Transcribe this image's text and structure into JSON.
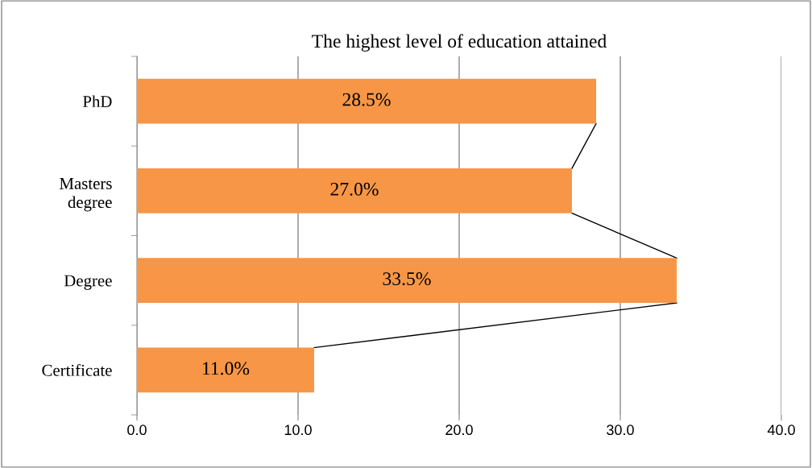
{
  "chart_data": {
    "type": "bar",
    "orientation": "horizontal",
    "title": "The highest level of education attained",
    "categories": [
      "PhD",
      "Masters\ndegree",
      "Degree",
      "Certificate"
    ],
    "values": [
      28.5,
      27.0,
      33.5,
      11.0
    ],
    "value_labels": [
      "28.5%",
      "27.0%",
      "33.5%",
      "11.0%"
    ],
    "color": "#f79646",
    "xlim": [
      0,
      40
    ],
    "xticks": [
      {
        "value": 0,
        "label": "0.0"
      },
      {
        "value": 10,
        "label": "10.0"
      },
      {
        "value": 20,
        "label": "20.0"
      },
      {
        "value": 30,
        "label": "30.0"
      },
      {
        "value": 40,
        "label": "40.0"
      }
    ],
    "grid": "x",
    "legend": false
  }
}
